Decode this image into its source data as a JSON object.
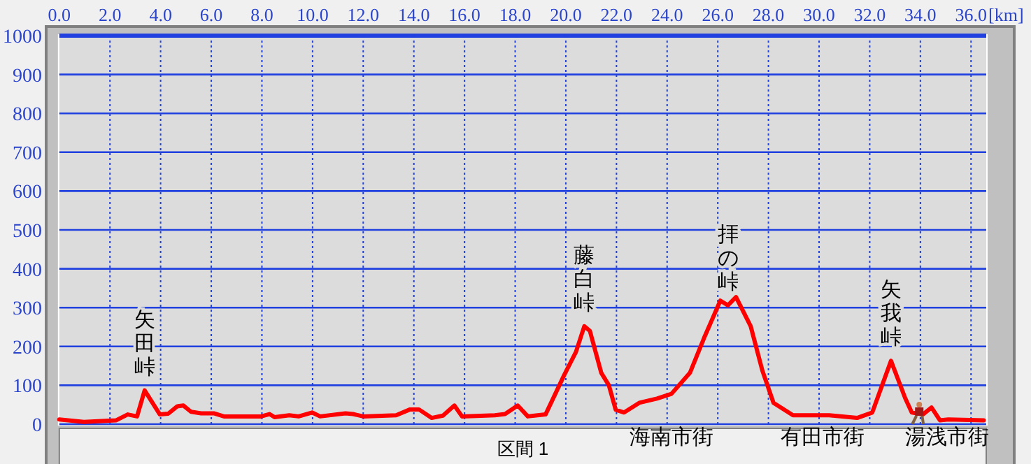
{
  "chart_data": {
    "type": "line",
    "x": [
      0,
      0.97,
      2.25,
      2.7,
      3.07,
      3.37,
      3.63,
      3.97,
      4.3,
      4.66,
      4.9,
      5.2,
      5.6,
      6.1,
      6.5,
      7.97,
      8.3,
      8.5,
      9.08,
      9.45,
      9.98,
      10.3,
      11.3,
      11.6,
      12,
      13.3,
      13.85,
      14.2,
      14.7,
      15.15,
      15.6,
      15.9,
      17.2,
      17.6,
      18.1,
      18.5,
      19.2,
      19.94,
      20.4,
      20.73,
      20.95,
      21.4,
      21.7,
      21.97,
      22.3,
      22.9,
      23.6,
      24.17,
      24.9,
      25.46,
      26.1,
      26.4,
      26.72,
      27.3,
      27.76,
      28.2,
      28.97,
      30.4,
      31.5,
      32.1,
      32.84,
      33.4,
      33.66,
      34.1,
      34.44,
      34.77,
      35.1,
      36.5
    ],
    "series": [
      {
        "color": "#ff0000",
        "values": [
          12,
          6,
          10,
          25,
          20,
          87,
          60,
          25,
          27,
          46,
          48,
          32,
          28,
          28,
          20,
          20,
          26,
          18,
          23,
          20,
          30,
          20,
          28,
          26,
          20,
          23,
          38,
          38,
          16,
          22,
          48,
          20,
          23,
          26,
          48,
          20,
          25,
          127,
          186,
          252,
          240,
          132,
          100,
          37,
          30,
          55,
          66,
          78,
          132,
          222,
          318,
          306,
          327,
          252,
          138,
          55,
          23,
          23,
          16,
          30,
          163,
          67,
          30,
          25,
          43,
          10,
          12,
          10
        ]
      }
    ],
    "xlim": [
      0,
      36.6
    ],
    "ylim": [
      0,
      1000
    ],
    "xticks": [
      {
        "value": 0,
        "label": "0.0"
      },
      {
        "value": 2,
        "label": "2.0"
      },
      {
        "value": 4,
        "label": "4.0"
      },
      {
        "value": 6,
        "label": "6.0"
      },
      {
        "value": 8,
        "label": "8.0"
      },
      {
        "value": 10,
        "label": "10.0"
      },
      {
        "value": 12,
        "label": "12.0"
      },
      {
        "value": 14,
        "label": "14.0"
      },
      {
        "value": 16,
        "label": "16.0"
      },
      {
        "value": 18,
        "label": "18.0"
      },
      {
        "value": 20,
        "label": "20.0"
      },
      {
        "value": 22,
        "label": "22.0"
      },
      {
        "value": 24,
        "label": "24.0"
      },
      {
        "value": 26,
        "label": "26.0"
      },
      {
        "value": 28,
        "label": "28.0"
      },
      {
        "value": 30,
        "label": "30.0"
      },
      {
        "value": 32,
        "label": "32.0"
      },
      {
        "value": 34,
        "label": "34.0"
      },
      {
        "value": 36,
        "label": "36.0"
      }
    ],
    "yticks": [
      0,
      100,
      200,
      300,
      400,
      500,
      600,
      700,
      800,
      900,
      1000
    ],
    "xlabel": "[km]",
    "grid": true,
    "marker": "none",
    "line_style": "solid",
    "annotations": [
      {
        "text": "矢田峠",
        "x": 3.37,
        "y": 87
      },
      {
        "text": "藤白峠",
        "x": 20.73,
        "y": 252
      },
      {
        "text": "拝の峠",
        "x": 26.4,
        "y": 306
      },
      {
        "text": "矢我峠",
        "x": 32.84,
        "y": 163
      },
      "海南市街",
      "有田市街",
      "湯浅市街",
      "区間 1"
    ]
  }
}
